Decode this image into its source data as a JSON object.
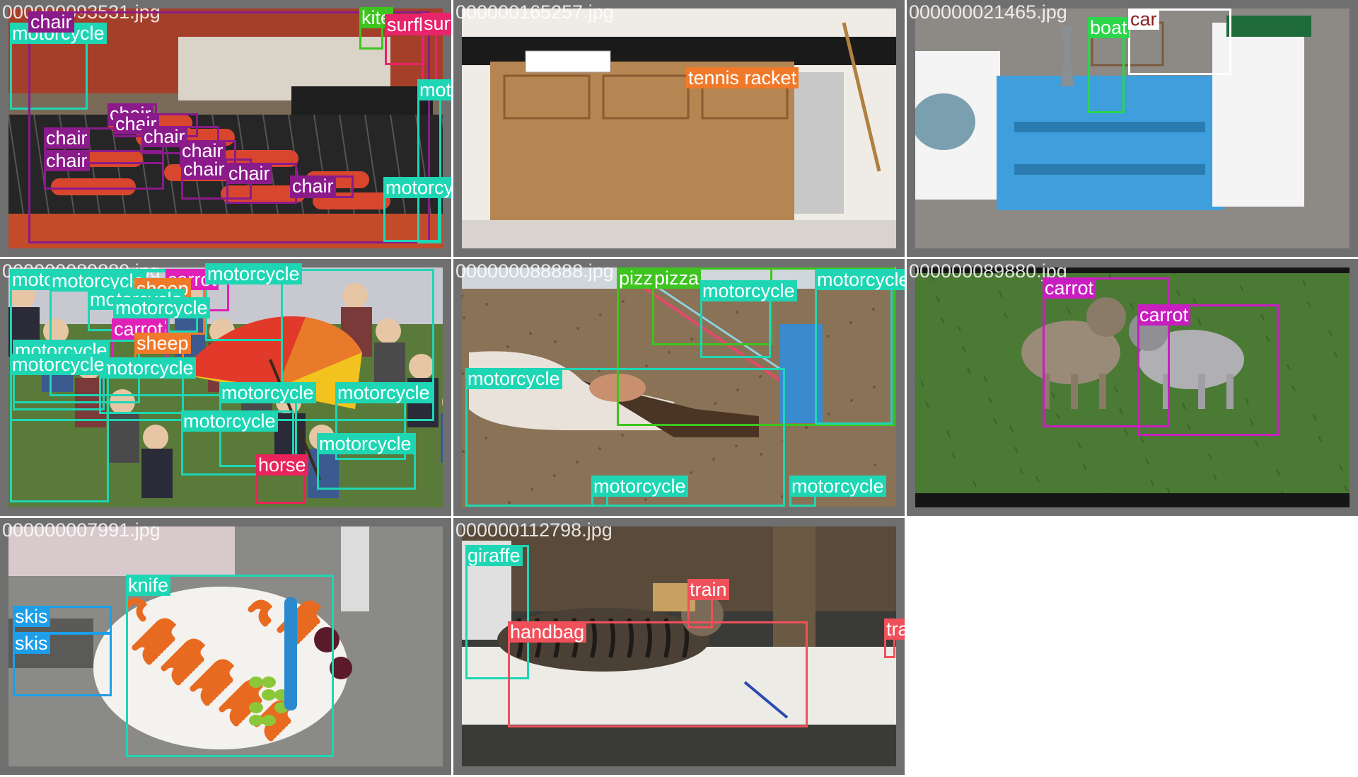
{
  "grid": {
    "tiles": [
      {
        "filename": "000000093531.jpg",
        "scene_icon": "grill-scene",
        "detections": [
          {
            "label": "motorcycle",
            "color": "#1ed6b4"
          },
          {
            "label": "chair",
            "color": "#8b1a8b"
          },
          {
            "label": "kite",
            "color": "#3ec41e"
          },
          {
            "label": "surfboard",
            "color": "#e8246a"
          },
          {
            "label": "surfboard",
            "color": "#e8246a"
          },
          {
            "label": "chair",
            "color": "#8b1a8b"
          },
          {
            "label": "chair",
            "color": "#8b1a8b"
          },
          {
            "label": "chair",
            "color": "#8b1a8b"
          },
          {
            "label": "chair",
            "color": "#8b1a8b"
          },
          {
            "label": "chair",
            "color": "#8b1a8b"
          },
          {
            "label": "chair",
            "color": "#8b1a8b"
          },
          {
            "label": "chair",
            "color": "#8b1a8b"
          },
          {
            "label": "chair",
            "color": "#8b1a8b"
          },
          {
            "label": "chair",
            "color": "#8b1a8b"
          },
          {
            "label": "motorcycle",
            "color": "#1ed6b4"
          },
          {
            "label": "motorcycle",
            "color": "#1ed6b4"
          }
        ]
      },
      {
        "filename": "000000165257.jpg",
        "scene_icon": "kitchen-scene",
        "detections": [
          {
            "label": "tennis racket",
            "color": "#f07a2a"
          }
        ]
      },
      {
        "filename": "000000021465.jpg",
        "scene_icon": "furniture-scene",
        "detections": [
          {
            "label": "boat",
            "color": "#2ad64a"
          },
          {
            "label": "car",
            "color": "#ffffff"
          }
        ]
      },
      {
        "filename": "000000089880.jpg",
        "scene_icon": "crowd-umbrella-scene",
        "detections": [
          {
            "label": "motorcycle",
            "color": "#1ed6b4"
          },
          {
            "label": "motorcycle",
            "color": "#1ed6b4"
          },
          {
            "label": "carrot",
            "color": "#e020b8"
          },
          {
            "label": "motorcycle",
            "color": "#1ed6b4"
          },
          {
            "label": "sheep",
            "color": "#f07a2a"
          },
          {
            "label": "motorcycle",
            "color": "#1ed6b4"
          },
          {
            "label": "motorcycle",
            "color": "#1ed6b4"
          },
          {
            "label": "carrot",
            "color": "#e020b8"
          },
          {
            "label": "sheep",
            "color": "#f07a2a"
          },
          {
            "label": "motorcycle",
            "color": "#1ed6b4"
          },
          {
            "label": "motorcycle",
            "color": "#1ed6b4"
          },
          {
            "label": "motorcycle",
            "color": "#1ed6b4"
          },
          {
            "label": "motorcycle",
            "color": "#1ed6b4"
          },
          {
            "label": "motorcycle",
            "color": "#1ed6b4"
          },
          {
            "label": "motorcycle",
            "color": "#1ed6b4"
          },
          {
            "label": "motorcycle",
            "color": "#1ed6b4"
          },
          {
            "label": "horse",
            "color": "#e8245a"
          },
          {
            "label": "motorcycle",
            "color": "#1ed6b4"
          }
        ]
      },
      {
        "filename": "000000088888.jpg",
        "scene_icon": "beach-scene",
        "detections": [
          {
            "label": "pizza",
            "color": "#3ec41e"
          },
          {
            "label": "pizza",
            "color": "#3ec41e"
          },
          {
            "label": "motorcycle",
            "color": "#1ed6b4"
          },
          {
            "label": "motorcycle",
            "color": "#1ed6b4"
          },
          {
            "label": "motorcycle",
            "color": "#1ed6b4"
          },
          {
            "label": "motorcycle",
            "color": "#1ed6b4"
          },
          {
            "label": "motorcycle",
            "color": "#1ed6b4"
          }
        ]
      },
      {
        "filename": "000000089880.jpg",
        "scene_icon": "dogs-grass-scene",
        "detections": [
          {
            "label": "carrot",
            "color": "#c81ec0"
          },
          {
            "label": "carrot",
            "color": "#c81ec0"
          }
        ]
      },
      {
        "filename": "000000007991.jpg",
        "scene_icon": "carrots-plate-scene",
        "detections": [
          {
            "label": "knife",
            "color": "#1ed6b4"
          },
          {
            "label": "skis",
            "color": "#1e9ee8"
          },
          {
            "label": "skis",
            "color": "#1e9ee8"
          }
        ]
      },
      {
        "filename": "000000112798.jpg",
        "scene_icon": "cat-desk-scene",
        "detections": [
          {
            "label": "giraffe",
            "color": "#1ed6b4"
          },
          {
            "label": "train",
            "color": "#f0505a"
          },
          {
            "label": "handbag",
            "color": "#f0505a"
          },
          {
            "label": "train",
            "color": "#f0505a"
          }
        ]
      }
    ]
  }
}
